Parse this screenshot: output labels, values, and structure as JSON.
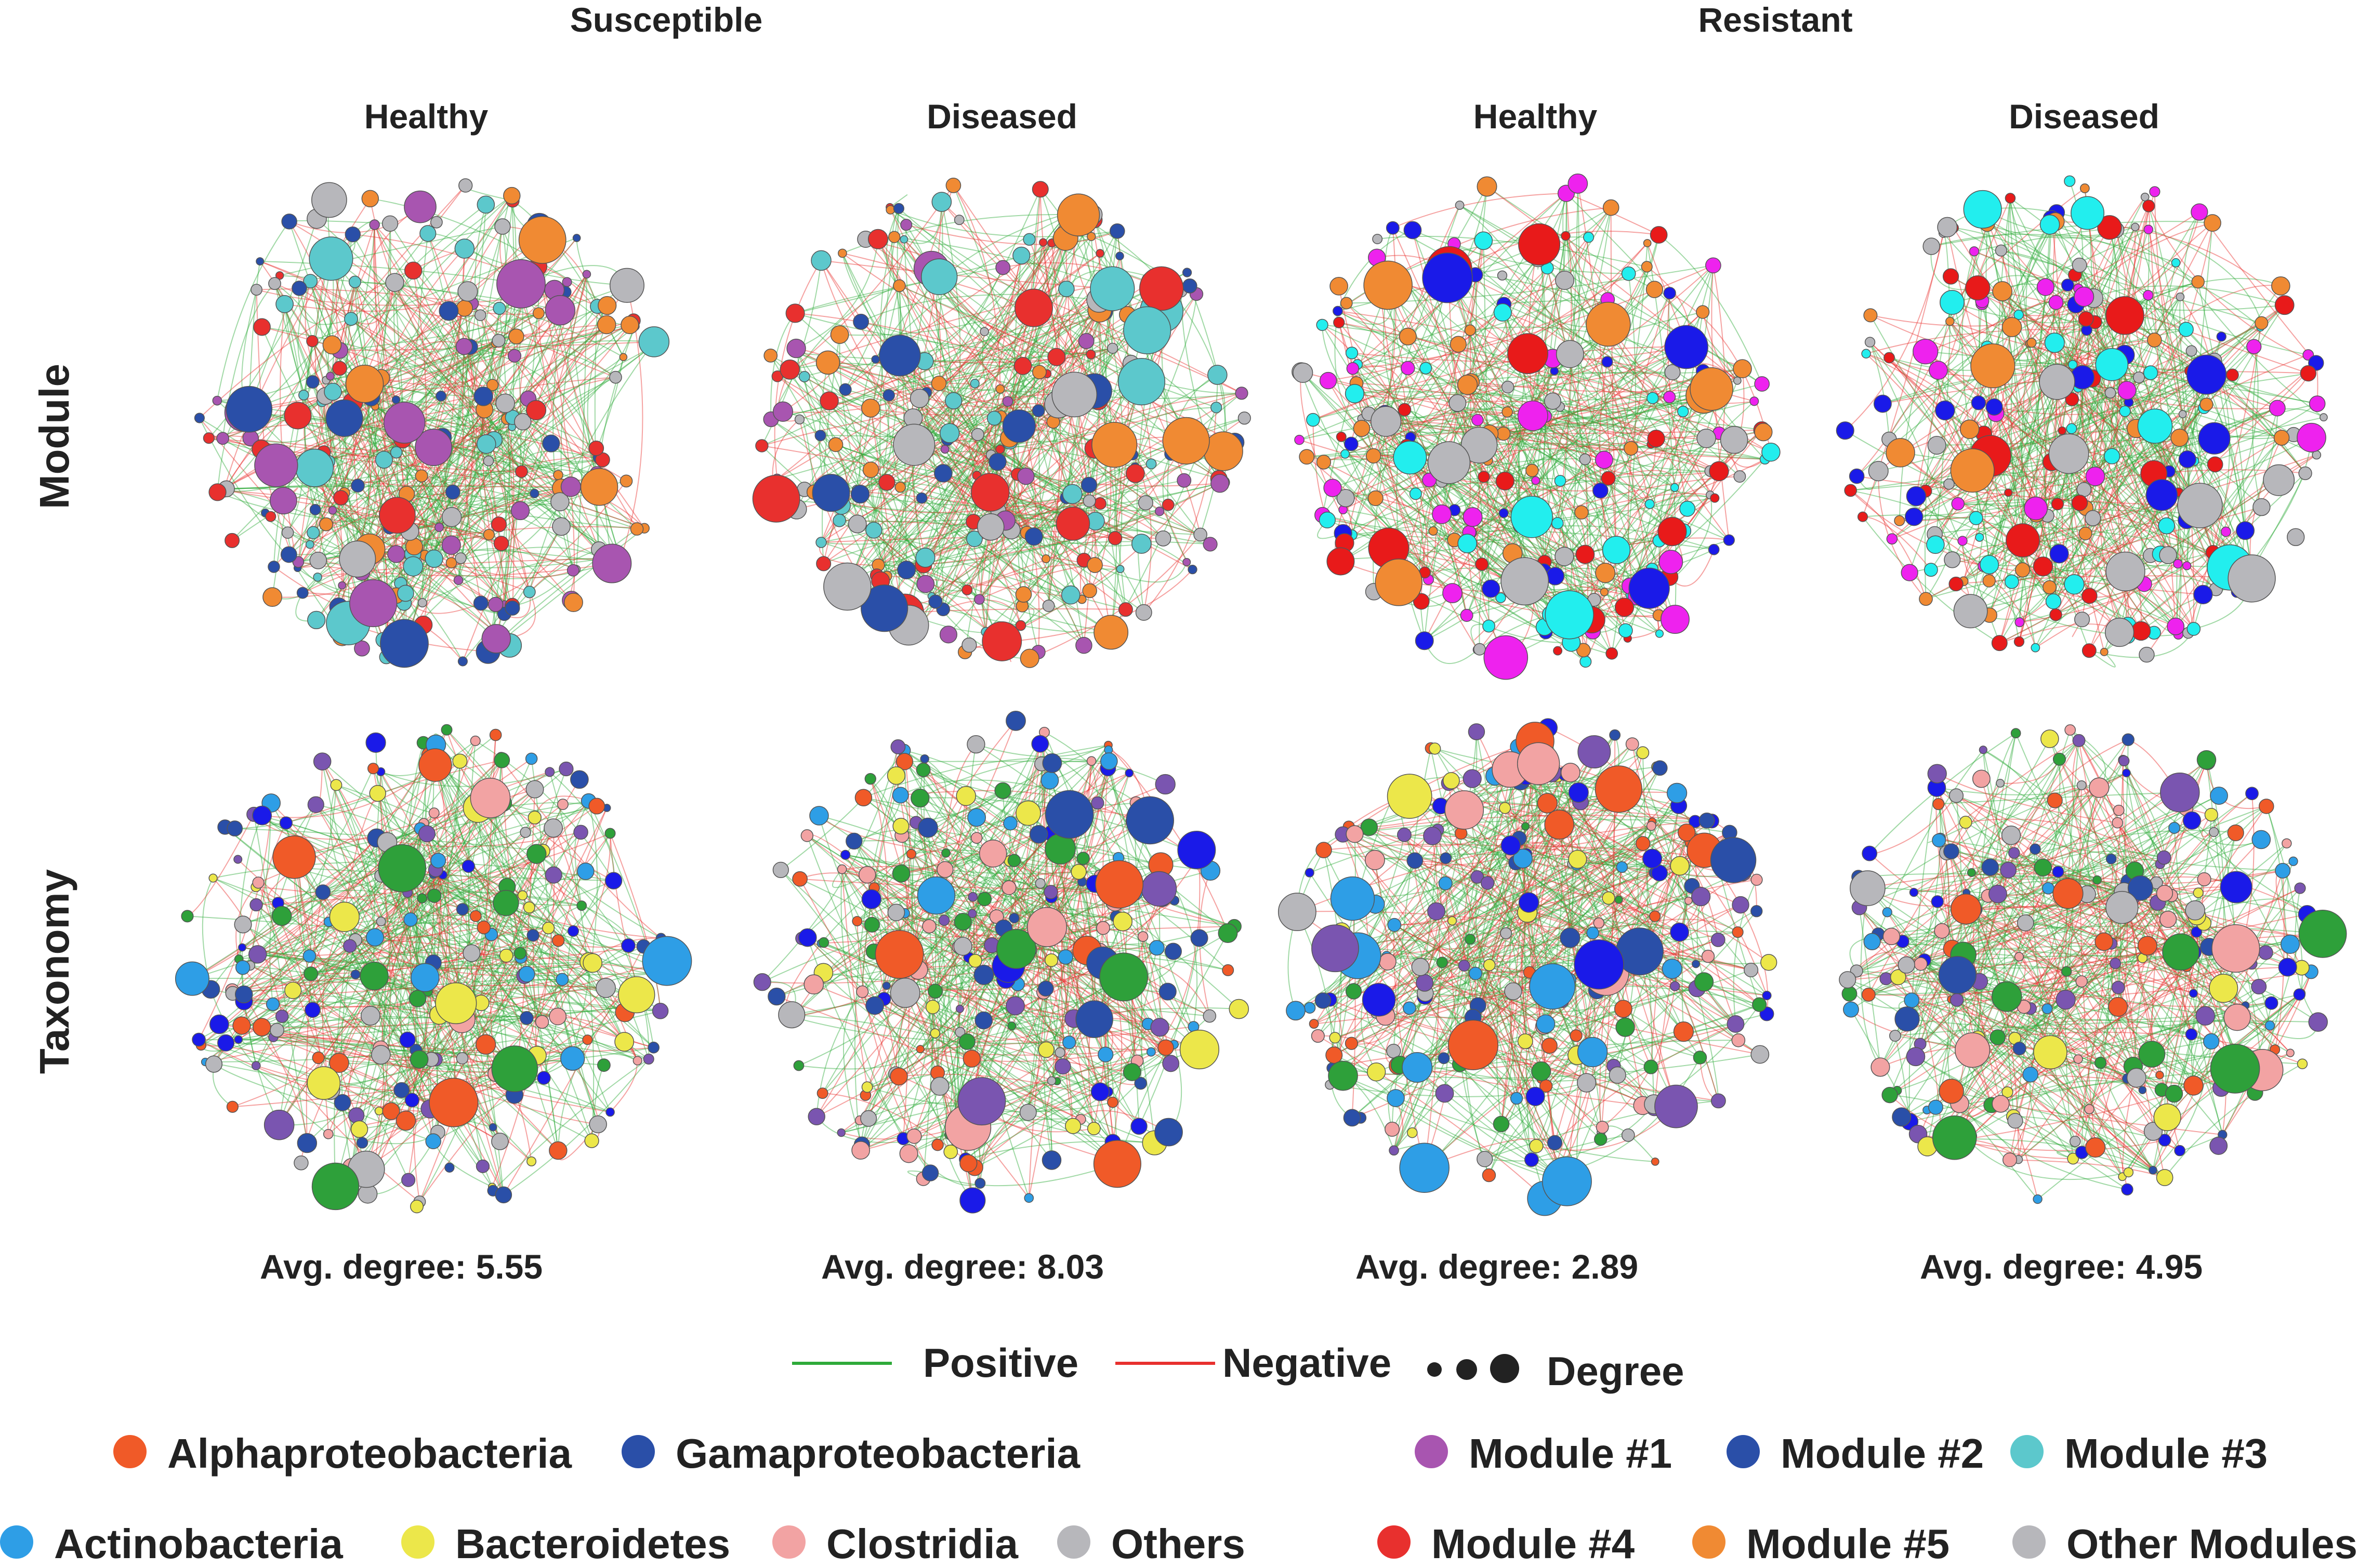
{
  "groups": [
    "Susceptible",
    "Resistant"
  ],
  "conditions": [
    "Healthy",
    "Diseased",
    "Healthy",
    "Diseased"
  ],
  "rows": [
    "Module",
    "Taxonomy"
  ],
  "panels": [
    {
      "group": "Susceptible",
      "condition": "Healthy",
      "avg_degree_label": "Avg. degree: 5.55"
    },
    {
      "group": "Susceptible",
      "condition": "Diseased",
      "avg_degree_label": "Avg. degree: 8.03"
    },
    {
      "group": "Resistant",
      "condition": "Healthy",
      "avg_degree_label": "Avg. degree: 2.89"
    },
    {
      "group": "Resistant",
      "condition": "Diseased",
      "avg_degree_label": "Avg. degree: 4.95"
    }
  ],
  "edge_legend": {
    "positive": {
      "label": "Positive",
      "color": "#2eaa3a"
    },
    "negative": {
      "label": "Negative",
      "color": "#e8302e"
    },
    "degree": {
      "label": "Degree",
      "color": "#222222"
    }
  },
  "taxonomy_legend": [
    {
      "label": "Alphaproteobacteria",
      "color": "#f05a28"
    },
    {
      "label": "Gamaproteobacteria",
      "color": "#2a4fa8"
    },
    {
      "label": "Actinobacteria",
      "color": "#2e9ee6"
    },
    {
      "label": "Bacteroidetes",
      "color": "#ece74a"
    },
    {
      "label": "Clostridia",
      "color": "#f2a3a3"
    },
    {
      "label": "Others",
      "color": "#b7b7bb"
    }
  ],
  "module_legend": [
    {
      "label": "Module  #1",
      "color": "#a855b0"
    },
    {
      "label": "Module  #2",
      "color": "#2a4fa8"
    },
    {
      "label": "Module  #3",
      "color": "#5cc8cc"
    },
    {
      "label": "Module  #4",
      "color": "#e8302e"
    },
    {
      "label": "Module  #5",
      "color": "#f08a33"
    },
    {
      "label": "Other Modules",
      "color": "#b7b7bb"
    }
  ],
  "network_palettes": {
    "module_susceptible": [
      "#2a4fa8",
      "#e8302e",
      "#a855b0",
      "#f08a33",
      "#5cc8cc",
      "#b7b7bb"
    ],
    "module_resistant": [
      "#1a1ae8",
      "#e81a1a",
      "#ee22ee",
      "#f08a33",
      "#22eeee",
      "#b7b7bb"
    ],
    "taxonomy": [
      "#f05a28",
      "#2a4fa8",
      "#2e9ee6",
      "#ece74a",
      "#f2a3a3",
      "#b7b7bb",
      "#2ea03a",
      "#7a55b0",
      "#1a1ae8"
    ]
  }
}
